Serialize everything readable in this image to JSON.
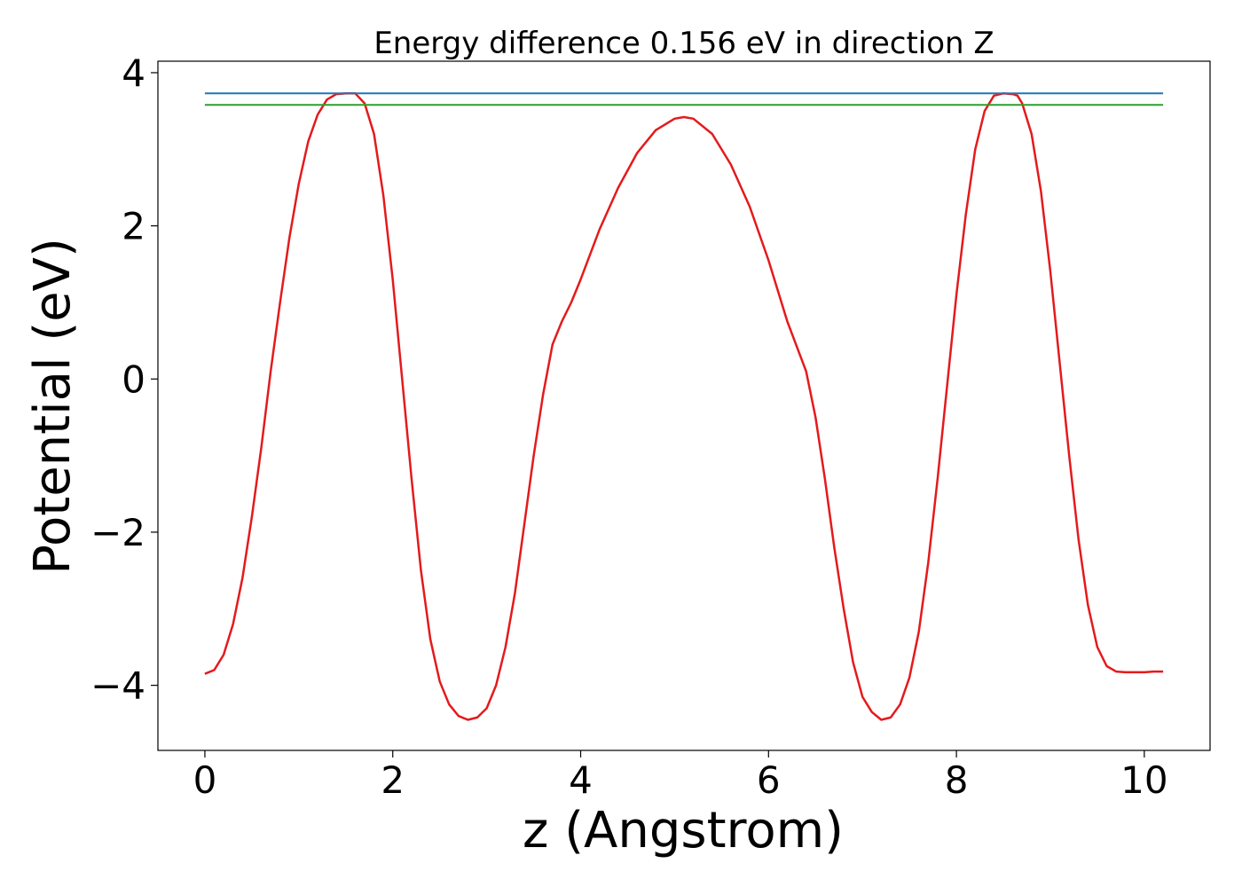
{
  "chart_data": {
    "type": "line",
    "title": "Energy difference 0.156 eV in direction Z",
    "xlabel": "z (Angstrom)",
    "ylabel": "Potential (eV)",
    "xlim": [
      -0.5,
      10.7
    ],
    "ylim": [
      -4.85,
      4.15
    ],
    "xticks": [
      0,
      2,
      4,
      6,
      8,
      10
    ],
    "xtick_labels": [
      "0",
      "2",
      "4",
      "6",
      "8",
      "10"
    ],
    "yticks": [
      -4,
      -2,
      0,
      2,
      4
    ],
    "ytick_labels": [
      "−4",
      "−2",
      "0",
      "2",
      "4"
    ],
    "grid": false,
    "series": [
      {
        "color": "#e41a1c",
        "x": [
          0.0,
          0.1,
          0.2,
          0.3,
          0.4,
          0.5,
          0.6,
          0.7,
          0.8,
          0.9,
          1.0,
          1.1,
          1.2,
          1.3,
          1.4,
          1.5,
          1.6,
          1.7,
          1.8,
          1.9,
          2.0,
          2.1,
          2.2,
          2.3,
          2.4,
          2.5,
          2.6,
          2.7,
          2.8,
          2.9,
          3.0,
          3.1,
          3.2,
          3.3,
          3.4,
          3.5,
          3.6,
          3.7,
          3.8,
          3.9,
          4.0,
          4.2,
          4.4,
          4.6,
          4.8,
          5.0,
          5.1,
          5.2,
          5.4,
          5.6,
          5.8,
          6.0,
          6.2,
          6.4,
          6.5,
          6.6,
          6.7,
          6.8,
          6.9,
          7.0,
          7.1,
          7.2,
          7.3,
          7.4,
          7.5,
          7.6,
          7.7,
          7.8,
          7.9,
          8.0,
          8.1,
          8.2,
          8.3,
          8.4,
          8.5,
          8.6,
          8.65,
          8.7,
          8.8,
          8.9,
          9.0,
          9.1,
          9.2,
          9.3,
          9.4,
          9.5,
          9.6,
          9.7,
          9.8,
          9.9,
          10.0,
          10.1,
          10.2
        ],
        "y": [
          -3.85,
          -3.8,
          -3.6,
          -3.2,
          -2.6,
          -1.8,
          -0.9,
          0.1,
          1.0,
          1.85,
          2.55,
          3.1,
          3.45,
          3.65,
          3.72,
          3.73,
          3.73,
          3.6,
          3.2,
          2.4,
          1.3,
          0.0,
          -1.3,
          -2.5,
          -3.4,
          -3.95,
          -4.25,
          -4.4,
          -4.45,
          -4.42,
          -4.3,
          -4.0,
          -3.5,
          -2.8,
          -1.9,
          -1.0,
          -0.2,
          0.45,
          0.75,
          1.0,
          1.3,
          1.95,
          2.5,
          2.95,
          3.25,
          3.4,
          3.42,
          3.4,
          3.2,
          2.8,
          2.25,
          1.55,
          0.75,
          0.1,
          -0.5,
          -1.3,
          -2.2,
          -3.0,
          -3.7,
          -4.15,
          -4.35,
          -4.45,
          -4.42,
          -4.25,
          -3.9,
          -3.3,
          -2.4,
          -1.3,
          -0.1,
          1.1,
          2.15,
          3.0,
          3.5,
          3.7,
          3.73,
          3.72,
          3.7,
          3.6,
          3.2,
          2.45,
          1.4,
          0.2,
          -1.0,
          -2.1,
          -2.95,
          -3.5,
          -3.75,
          -3.82,
          -3.83,
          -3.83,
          -3.83,
          -3.82,
          -3.82
        ]
      },
      {
        "color": "#1f77b4",
        "x": [
          0.0,
          10.2
        ],
        "y": [
          3.73,
          3.73
        ]
      },
      {
        "color": "#2ca02c",
        "x": [
          0.0,
          10.2
        ],
        "y": [
          3.58,
          3.58
        ]
      }
    ]
  }
}
